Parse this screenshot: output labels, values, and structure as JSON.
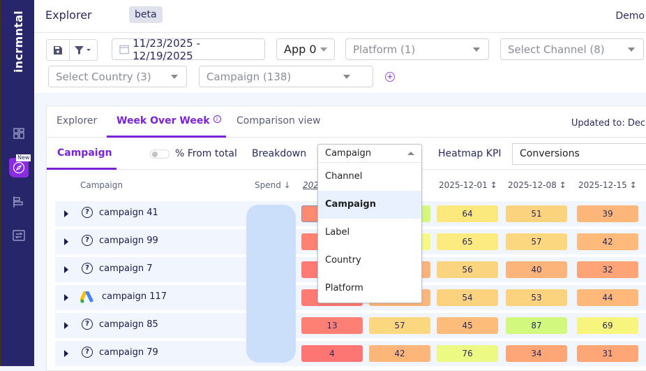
{
  "app": {
    "logo": "incrmntal",
    "title": "Explorer",
    "badge": "beta",
    "user": "Demo"
  },
  "sidebar": {
    "new_tag": "New",
    "items": [
      {
        "icon": "dashboard-icon"
      },
      {
        "icon": "compass-icon",
        "active": true
      },
      {
        "icon": "bar-chart-icon"
      },
      {
        "icon": "transfer-icon"
      }
    ]
  },
  "filters": {
    "date_range": "11/23/2025 - 12/19/2025",
    "app": "App 0",
    "platform": "Platform (1)",
    "channel": "Select Channel (8)",
    "country": "Select Country (3)",
    "campaign": "Campaign (138)"
  },
  "tabs": [
    {
      "label": "Explorer"
    },
    {
      "label": "Week Over Week",
      "active": true
    },
    {
      "label": "Comparison view"
    }
  ],
  "updated": "Updated to: Dec",
  "subtoolbar": {
    "tab": "Campaign",
    "toggle_label": "% From total",
    "breakdown_label": "Breakdown",
    "breakdown_value": "Campaign",
    "heatmap_label": "Heatmap KPI",
    "heatmap_value": "Conversions"
  },
  "dropdown": {
    "options": [
      "Channel",
      "Campaign",
      "Label",
      "Country",
      "Platform"
    ],
    "selected": "Campaign"
  },
  "table": {
    "headers": {
      "campaign": "Campaign",
      "spend": "Spend",
      "col1": "202",
      "col3": "2025-12-01",
      "col4": "2025-12-08",
      "col5": "2025-12-15"
    },
    "rows": [
      {
        "name": "campaign 41",
        "icon": "question-icon",
        "values": [
          null,
          null,
          64,
          51,
          39
        ]
      },
      {
        "name": "campaign 99",
        "icon": "question-icon",
        "values": [
          null,
          null,
          65,
          57,
          42
        ]
      },
      {
        "name": "campaign 7",
        "icon": "question-icon",
        "values": [
          null,
          null,
          56,
          40,
          32
        ]
      },
      {
        "name": "campaign 117",
        "icon": "google-ads-icon",
        "values": [
          null,
          null,
          54,
          53,
          44
        ]
      },
      {
        "name": "campaign 85",
        "icon": "question-icon",
        "values": [
          13,
          57,
          45,
          87,
          69
        ]
      },
      {
        "name": "campaign 79",
        "icon": "question-icon",
        "values": [
          4,
          42,
          76,
          34,
          31
        ]
      }
    ],
    "colors": [
      [
        "#fe8a72",
        "#d4f77c",
        "#fbe97e",
        "#fbd27e",
        "#fdb67a"
      ],
      [
        "#fe8272",
        "#f8f884",
        "#fbeb80",
        "#fbd880",
        "#fdba7a"
      ],
      [
        "#fe7a72",
        "#fdb27a",
        "#fbd480",
        "#fdb47a",
        "#fea476"
      ],
      [
        "#fe7a72",
        "#fdb67a",
        "#fbd27e",
        "#fbd27e",
        "#fdb87a"
      ],
      [
        "#fe8074",
        "#fbd880",
        "#fdbc7a",
        "#d2f97e",
        "#f8f57e"
      ],
      [
        "#fe7674",
        "#fdb67a",
        "#ecf982",
        "#fea676",
        "#fea676"
      ]
    ]
  },
  "accent": "#7b22d8"
}
